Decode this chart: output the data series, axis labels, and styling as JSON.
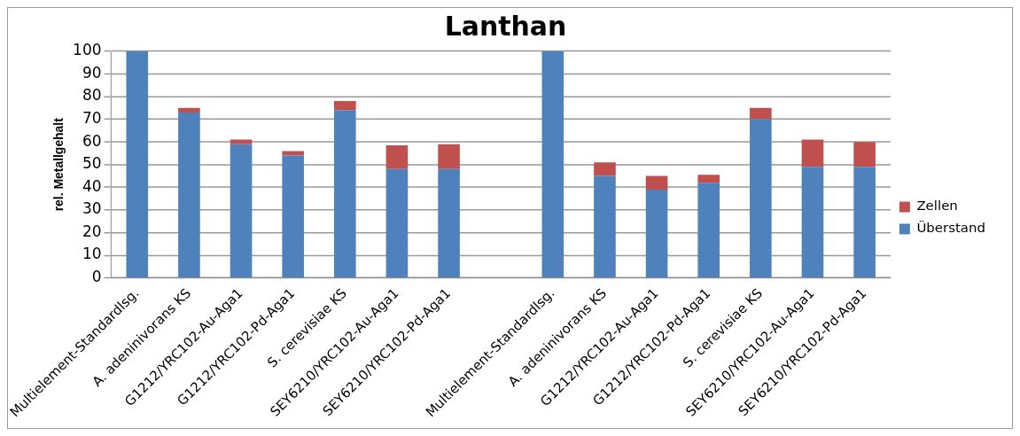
{
  "chart_data": {
    "type": "bar",
    "title": "Lanthan",
    "ylabel": "rel. Metallgehalt",
    "stacked": true,
    "categories": [
      "Multielement-Standardlsg.",
      "A. adeninivorans KS",
      "G1212/YRC102-Au-Aga1",
      "G1212/YRC102-Pd-Aga1",
      "S. cerevisiae KS",
      "SEY6210/YRC102-Au-Aga1",
      "SEY6210/YRC102-Pd-Aga1",
      null,
      "Multielement-Standardlsg.",
      "A. adeninivorans KS",
      "G1212/YRC102-Au-Aga1",
      "G1212/YRC102-Pd-Aga1",
      "S. cerevisiae KS",
      "SEY6210/YRC102-Au-Aga1",
      "SEY6210/YRC102-Pd-Aga1"
    ],
    "series": [
      {
        "name": "Überstand",
        "color": "#4f81bd",
        "values": [
          100,
          73,
          59,
          54,
          74,
          48,
          48,
          null,
          100,
          45,
          39,
          42,
          70,
          49,
          49
        ]
      },
      {
        "name": "Zellen",
        "color": "#c0504d",
        "values": [
          0,
          2,
          2,
          2,
          4,
          10.5,
          11,
          null,
          0,
          6,
          6,
          3.5,
          5,
          12,
          11
        ]
      }
    ],
    "ylim": [
      0,
      100
    ],
    "yticks": [
      0,
      10,
      20,
      30,
      40,
      50,
      60,
      70,
      80,
      90,
      100
    ],
    "grid": "y",
    "legend": "right"
  }
}
